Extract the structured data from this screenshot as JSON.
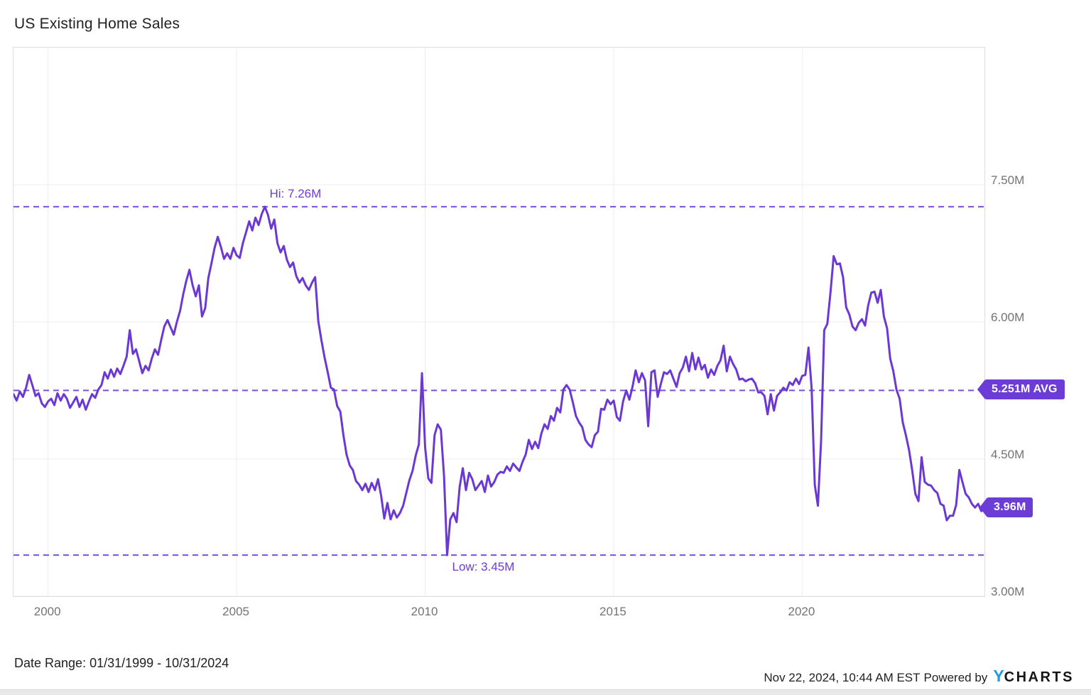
{
  "title": "US Existing Home Sales",
  "colors": {
    "line": "#6C38D4",
    "dashed_line": "#7C4EE0",
    "badge_bg": "#6B3CD6",
    "badge_text": "#FFFFFF",
    "annotation_text": "#6D3BD6",
    "axis_label": "#737373",
    "gridline": "#ECECEC",
    "plot_border": "#DEDEDE",
    "title_text": "#212121",
    "logo_y_blue": "#1E9BE9",
    "logo_charts_black": "#151515"
  },
  "chart_data": {
    "type": "line",
    "title": "US Existing Home Sales",
    "unit": "millions (M)",
    "frequency": "monthly",
    "x_start_year_decimal": 1999.0833,
    "x_end_year_decimal": 2024.8333,
    "ylim": [
      3.0,
      9.0
    ],
    "grid": true,
    "legend": false,
    "x_ticks": [
      {
        "label": "2000",
        "value": 2000
      },
      {
        "label": "2005",
        "value": 2005
      },
      {
        "label": "2010",
        "value": 2010
      },
      {
        "label": "2015",
        "value": 2015
      },
      {
        "label": "2020",
        "value": 2020
      }
    ],
    "y_ticks": [
      {
        "label": "7.50M",
        "value": 7.5
      },
      {
        "label": "6.00M",
        "value": 6.0
      },
      {
        "label": "4.50M",
        "value": 4.5
      },
      {
        "label": "3.00M",
        "value": 3.0
      }
    ],
    "annotations": {
      "high": {
        "label": "Hi: 7.26M",
        "value": 7.26,
        "x_year": 2005.75
      },
      "low": {
        "label": "Low: 3.45M",
        "value": 3.45,
        "x_year": 2010.5833
      },
      "average": {
        "label": "5.251M AVG",
        "value": 5.251
      },
      "last": {
        "label": "3.96M",
        "value": 3.96
      }
    },
    "values": [
      5.21,
      5.14,
      5.24,
      5.18,
      5.28,
      5.42,
      5.31,
      5.19,
      5.22,
      5.11,
      5.07,
      5.13,
      5.16,
      5.09,
      5.22,
      5.14,
      5.21,
      5.16,
      5.06,
      5.12,
      5.18,
      5.07,
      5.15,
      5.04,
      5.13,
      5.21,
      5.17,
      5.26,
      5.31,
      5.45,
      5.38,
      5.48,
      5.4,
      5.49,
      5.43,
      5.52,
      5.62,
      5.91,
      5.65,
      5.7,
      5.57,
      5.44,
      5.52,
      5.47,
      5.6,
      5.7,
      5.64,
      5.8,
      5.95,
      6.02,
      5.94,
      5.86,
      6.0,
      6.12,
      6.3,
      6.45,
      6.57,
      6.4,
      6.28,
      6.4,
      6.06,
      6.15,
      6.48,
      6.64,
      6.81,
      6.93,
      6.82,
      6.69,
      6.75,
      6.69,
      6.81,
      6.73,
      6.7,
      6.86,
      6.98,
      7.1,
      7.0,
      7.14,
      7.06,
      7.18,
      7.26,
      7.17,
      7.02,
      7.12,
      6.86,
      6.76,
      6.83,
      6.68,
      6.6,
      6.65,
      6.5,
      6.43,
      6.48,
      6.4,
      6.35,
      6.43,
      6.49,
      6.01,
      5.8,
      5.61,
      5.45,
      5.28,
      5.26,
      5.08,
      5.02,
      4.76,
      4.55,
      4.43,
      4.38,
      4.26,
      4.22,
      4.16,
      4.23,
      4.14,
      4.24,
      4.16,
      4.28,
      4.1,
      3.85,
      4.02,
      3.84,
      3.94,
      3.86,
      3.91,
      3.99,
      4.13,
      4.27,
      4.37,
      4.54,
      4.66,
      5.44,
      4.63,
      4.29,
      4.24,
      4.76,
      4.88,
      4.82,
      4.32,
      3.45,
      3.84,
      3.91,
      3.81,
      4.2,
      4.4,
      4.16,
      4.35,
      4.28,
      4.16,
      4.21,
      4.26,
      4.14,
      4.32,
      4.2,
      4.25,
      4.33,
      4.36,
      4.35,
      4.42,
      4.37,
      4.45,
      4.41,
      4.37,
      4.47,
      4.55,
      4.71,
      4.61,
      4.69,
      4.62,
      4.78,
      4.88,
      4.83,
      4.97,
      4.92,
      5.06,
      5.01,
      5.26,
      5.31,
      5.26,
      5.12,
      4.97,
      4.9,
      4.85,
      4.71,
      4.66,
      4.63,
      4.76,
      4.8,
      5.05,
      5.04,
      5.15,
      5.1,
      5.14,
      4.96,
      4.92,
      5.13,
      5.25,
      5.15,
      5.29,
      5.47,
      5.34,
      5.44,
      5.36,
      4.86,
      5.45,
      5.47,
      5.18,
      5.32,
      5.45,
      5.43,
      5.47,
      5.38,
      5.29,
      5.44,
      5.5,
      5.62,
      5.46,
      5.66,
      5.48,
      5.61,
      5.48,
      5.53,
      5.39,
      5.48,
      5.42,
      5.52,
      5.58,
      5.74,
      5.46,
      5.62,
      5.54,
      5.48,
      5.37,
      5.38,
      5.35,
      5.37,
      5.38,
      5.33,
      5.23,
      5.23,
      5.19,
      4.99,
      5.21,
      5.03,
      5.19,
      5.23,
      5.28,
      5.25,
      5.34,
      5.31,
      5.38,
      5.32,
      5.41,
      5.42,
      5.72,
      5.27,
      4.22,
      3.99,
      4.7,
      5.91,
      5.98,
      6.32,
      6.72,
      6.63,
      6.64,
      6.49,
      6.16,
      6.08,
      5.95,
      5.91,
      5.99,
      6.03,
      5.96,
      6.18,
      6.32,
      6.33,
      6.21,
      6.35,
      6.06,
      5.93,
      5.6,
      5.46,
      5.26,
      5.16,
      4.9,
      4.76,
      4.6,
      4.38,
      4.12,
      4.04,
      4.52,
      4.25,
      4.22,
      4.21,
      4.16,
      4.13,
      4.01,
      3.99,
      3.83,
      3.88,
      3.88,
      4.0,
      4.38,
      4.25,
      4.12,
      4.08,
      4.01,
      3.97,
      4.01,
      3.93,
      3.96
    ]
  },
  "footer": {
    "date_range": "Date Range: 01/31/1999 - 10/31/2024",
    "timestamp": "Nov 22, 2024, 10:44 AM EST",
    "powered_by": "Powered by",
    "logo_y": "Y",
    "logo_charts": "CHARTS"
  }
}
